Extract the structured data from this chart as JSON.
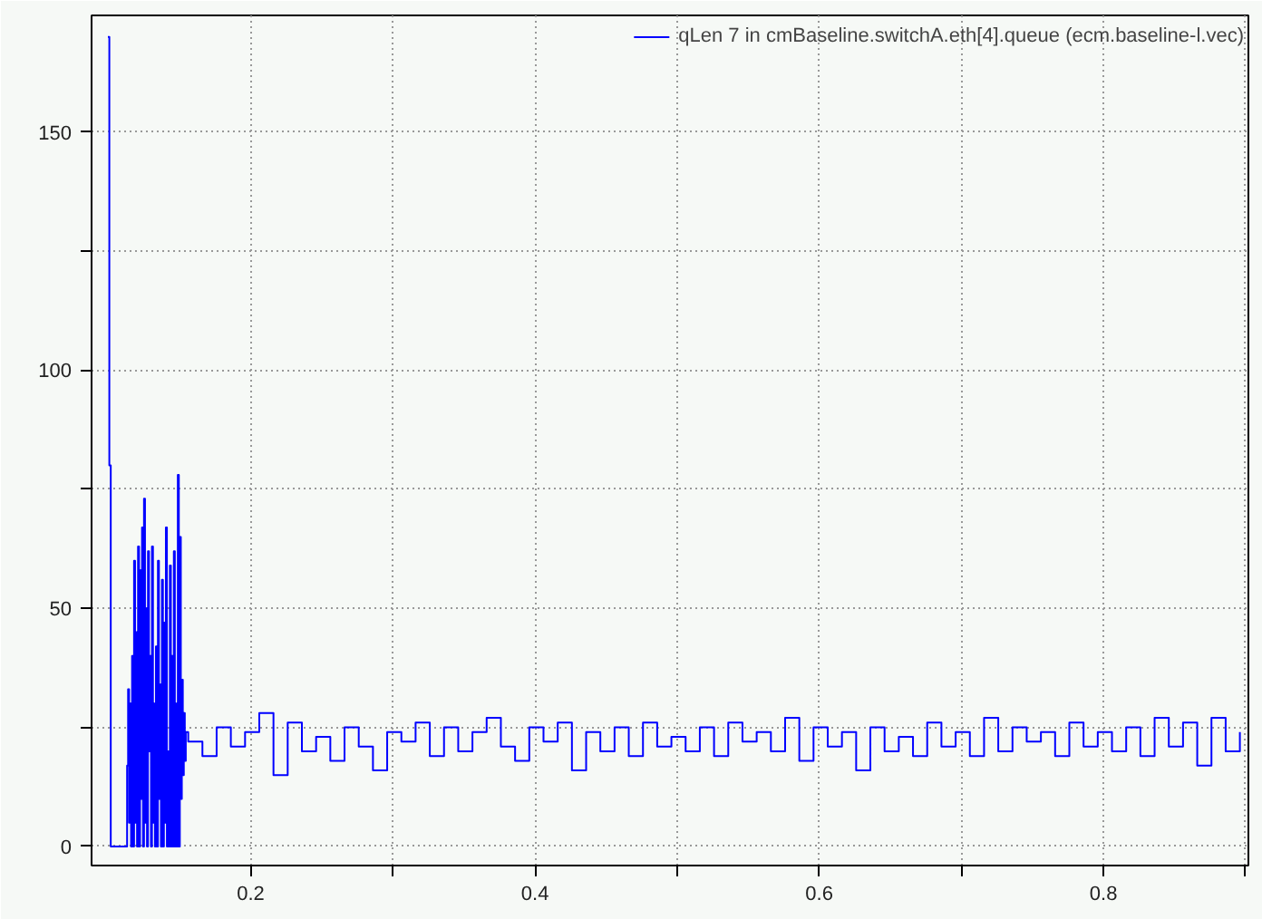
{
  "chart_data": {
    "type": "step",
    "xlim": [
      0.088,
      0.902
    ],
    "ylim": [
      -4,
      174.5
    ],
    "xticks": [
      {
        "value": 0.2,
        "label": "0.2"
      },
      {
        "value": 0.3,
        "label": null
      },
      {
        "value": 0.4,
        "label": "0.4"
      },
      {
        "value": 0.5,
        "label": null
      },
      {
        "value": 0.6,
        "label": "0.6"
      },
      {
        "value": 0.7,
        "label": null
      },
      {
        "value": 0.8,
        "label": "0.8"
      },
      {
        "value": 0.9,
        "label": null
      }
    ],
    "yticks": [
      0,
      {
        "value": 25,
        "label": null
      },
      50,
      {
        "value": 75,
        "label": null
      },
      100,
      {
        "value": 125,
        "label": null
      },
      150
    ],
    "grid": true,
    "legend": "top right",
    "marker": "none",
    "line_style": "solid",
    "series": [
      {
        "name": "qLen 7 in cmBaseline.switchA.eth[4].queue (ecm.baseline-l.vec)",
        "color": "#0000ff",
        "x": [
          0.0995,
          0.1005,
          0.1015,
          0.1125,
          0.113,
          0.1137,
          0.1144,
          0.1151,
          0.1158,
          0.1165,
          0.1172,
          0.1179,
          0.1186,
          0.1193,
          0.12,
          0.1207,
          0.1214,
          0.1221,
          0.1228,
          0.1235,
          0.1242,
          0.1249,
          0.1256,
          0.1263,
          0.127,
          0.1277,
          0.1284,
          0.1291,
          0.1298,
          0.1305,
          0.1312,
          0.1319,
          0.1326,
          0.1333,
          0.134,
          0.1347,
          0.1354,
          0.1361,
          0.1368,
          0.1375,
          0.1382,
          0.1389,
          0.1396,
          0.1403,
          0.141,
          0.1417,
          0.1424,
          0.1431,
          0.1438,
          0.1445,
          0.1452,
          0.1459,
          0.1466,
          0.1473,
          0.148,
          0.1487,
          0.1494,
          0.1501,
          0.1508,
          0.1515,
          0.1522,
          0.1529,
          0.1536,
          0.1543,
          0.156,
          0.166,
          0.176,
          0.186,
          0.196,
          0.206,
          0.216,
          0.226,
          0.236,
          0.246,
          0.256,
          0.266,
          0.276,
          0.286,
          0.296,
          0.306,
          0.316,
          0.326,
          0.336,
          0.346,
          0.356,
          0.366,
          0.376,
          0.386,
          0.396,
          0.406,
          0.416,
          0.426,
          0.436,
          0.446,
          0.456,
          0.466,
          0.476,
          0.486,
          0.496,
          0.506,
          0.516,
          0.526,
          0.536,
          0.546,
          0.556,
          0.566,
          0.576,
          0.586,
          0.596,
          0.606,
          0.616,
          0.626,
          0.636,
          0.646,
          0.656,
          0.666,
          0.676,
          0.686,
          0.696,
          0.706,
          0.716,
          0.726,
          0.736,
          0.746,
          0.756,
          0.766,
          0.776,
          0.786,
          0.796,
          0.806,
          0.816,
          0.826,
          0.836,
          0.846,
          0.856,
          0.866,
          0.876,
          0.886,
          0.896
        ],
        "values": [
          170,
          80,
          0,
          0,
          17,
          33,
          5,
          30,
          0,
          40,
          0,
          60,
          5,
          45,
          0,
          63,
          0,
          58,
          10,
          67,
          0,
          73,
          5,
          50,
          0,
          62,
          20,
          40,
          0,
          63,
          5,
          30,
          0,
          42,
          0,
          60,
          10,
          34,
          0,
          56,
          0,
          47,
          5,
          67,
          0,
          20,
          0,
          59,
          0,
          40,
          0,
          62,
          0,
          30,
          0,
          78,
          0,
          65,
          10,
          35,
          15,
          28,
          18,
          24,
          22,
          19,
          25,
          21,
          24,
          28,
          15,
          26,
          20,
          23,
          18,
          25,
          21,
          16,
          24,
          22,
          26,
          19,
          25,
          20,
          24,
          27,
          21,
          18,
          25,
          22,
          26,
          16,
          24,
          20,
          25,
          19,
          26,
          21,
          23,
          20,
          25,
          19,
          26,
          22,
          24,
          20,
          27,
          18,
          25,
          21,
          24,
          16,
          25,
          20,
          23,
          19,
          26,
          21,
          24,
          19,
          27,
          20,
          25,
          22,
          24,
          19,
          26,
          21,
          24,
          20,
          25,
          19,
          27,
          21,
          26,
          17,
          27,
          20,
          24
        ]
      }
    ]
  }
}
